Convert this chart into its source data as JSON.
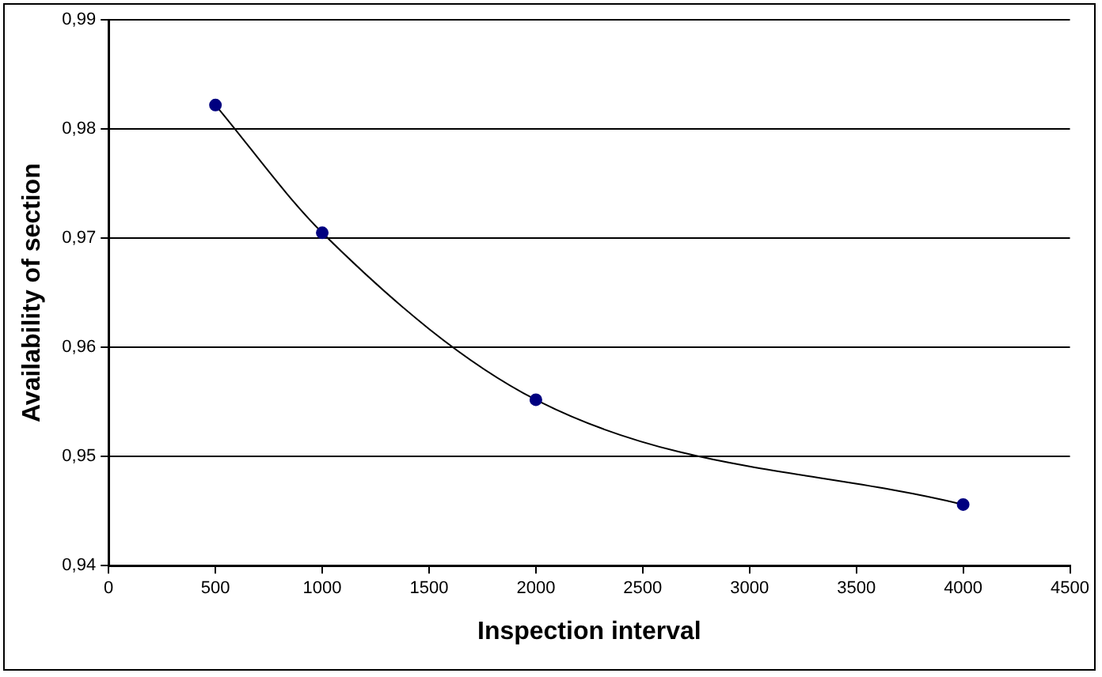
{
  "chart_data": {
    "type": "line",
    "xlabel": "Inspection interval",
    "ylabel": "Availability of section",
    "x": [
      500,
      1000,
      2000,
      4000
    ],
    "series": [
      {
        "color": "#000080",
        "values": [
          0.9822,
          0.9705,
          0.9552,
          0.9456
        ]
      }
    ],
    "xlim": [
      0,
      4500
    ],
    "xticks": [
      0,
      500,
      1000,
      1500,
      2000,
      2500,
      3000,
      3500,
      4000,
      4500
    ],
    "ylim": [
      0.94,
      0.99
    ],
    "yticks": [
      {
        "value": 0.94,
        "label": "0,94"
      },
      {
        "value": 0.95,
        "label": "0,95"
      },
      {
        "value": 0.96,
        "label": "0,96"
      },
      {
        "value": 0.97,
        "label": "0,97"
      },
      {
        "value": 0.98,
        "label": "0,98"
      },
      {
        "value": 0.99,
        "label": "0,99"
      }
    ],
    "grid": "y",
    "legend": false,
    "marker": "circle"
  }
}
